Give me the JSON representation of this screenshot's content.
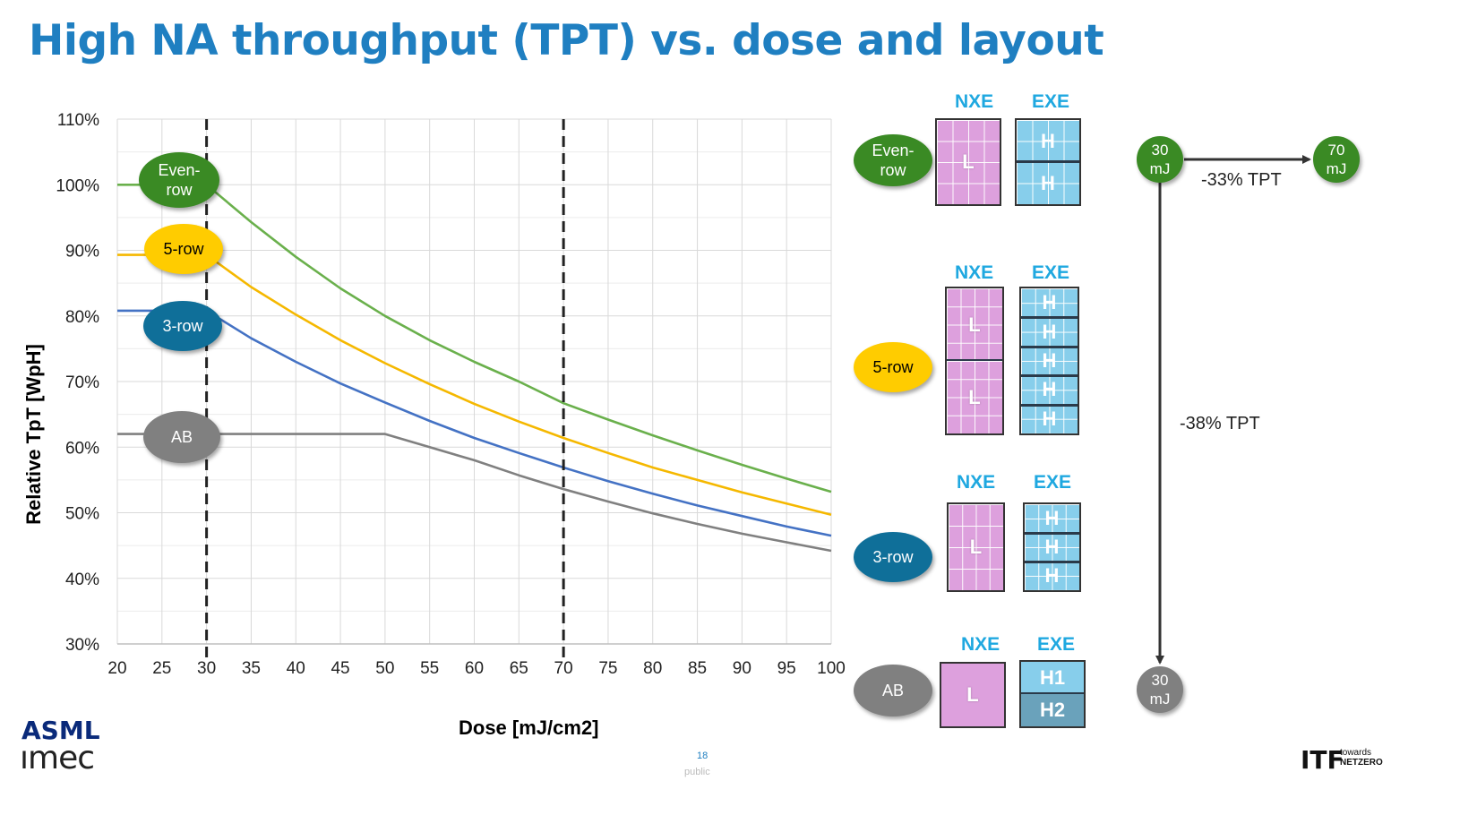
{
  "title": "High NA throughput (TPT) vs. dose and layout",
  "chart_data": {
    "type": "line",
    "xlabel": "Dose [mJ/cm2]",
    "ylabel": "Relative TpT [WpH]",
    "xlim": [
      20,
      100
    ],
    "ylim": [
      30,
      110
    ],
    "xticks": [
      20,
      25,
      30,
      35,
      40,
      45,
      50,
      55,
      60,
      65,
      70,
      75,
      80,
      85,
      90,
      95,
      100
    ],
    "yticks": [
      30,
      40,
      50,
      60,
      70,
      80,
      90,
      100,
      110
    ],
    "ytick_suffix": "%",
    "grid": true,
    "vlines": [
      30,
      70
    ],
    "series": [
      {
        "name": "Even-row",
        "color": "#6ab04c",
        "x": [
          20,
          25,
          30,
          35,
          40,
          45,
          50,
          55,
          60,
          65,
          70,
          75,
          80,
          85,
          90,
          95,
          100
        ],
        "y": [
          100,
          100,
          100,
          94.3,
          89,
          84.2,
          80,
          76.3,
          73,
          70,
          66.7,
          64.2,
          61.8,
          59.5,
          57.3,
          55.2,
          53.2
        ]
      },
      {
        "name": "5-row",
        "color": "#f5b800",
        "x": [
          20,
          25,
          30,
          35,
          40,
          45,
          50,
          55,
          60,
          65,
          70,
          75,
          80,
          85,
          90,
          95,
          100
        ],
        "y": [
          89.3,
          89.3,
          89.3,
          84.4,
          80.2,
          76.3,
          72.8,
          69.6,
          66.6,
          63.9,
          61.4,
          59.1,
          56.9,
          55,
          53.1,
          51.4,
          49.7
        ]
      },
      {
        "name": "3-row",
        "color": "#4472c4",
        "x": [
          20,
          25,
          30,
          35,
          40,
          45,
          50,
          55,
          60,
          65,
          70,
          75,
          80,
          85,
          90,
          95,
          100
        ],
        "y": [
          80.8,
          80.8,
          80.8,
          76.6,
          73,
          69.7,
          66.8,
          64,
          61.4,
          59.1,
          56.9,
          54.8,
          52.9,
          51.1,
          49.5,
          47.9,
          46.5
        ]
      },
      {
        "name": "AB",
        "color": "#808080",
        "x": [
          20,
          25,
          30,
          35,
          40,
          45,
          50,
          55,
          60,
          65,
          70,
          75,
          80,
          85,
          90,
          95,
          100
        ],
        "y": [
          62,
          62,
          62,
          62,
          62,
          62,
          62,
          60,
          58,
          55.7,
          53.6,
          51.7,
          49.9,
          48.3,
          46.8,
          45.5,
          44.2
        ]
      }
    ]
  },
  "chart_labels": {
    "even_row": "Even-\nrow",
    "five_row": "5-row",
    "three_row": "3-row",
    "ab": "AB"
  },
  "layouts": {
    "nxe_label": "NXE",
    "exe_label": "EXE",
    "even_row": {
      "name": "Even-\nrow",
      "nxe": "L",
      "exe": [
        "H",
        "H"
      ]
    },
    "five_row": {
      "name": "5-row",
      "nxe": [
        "L",
        "L"
      ],
      "exe": [
        "H",
        "H",
        "H",
        "H",
        "H"
      ]
    },
    "three_row": {
      "name": "3-row",
      "nxe": "L",
      "exe": [
        "H",
        "H",
        "H"
      ]
    },
    "ab": {
      "name": "AB",
      "nxe": "L",
      "exe": [
        "H1",
        "H2"
      ]
    }
  },
  "dose_flow": {
    "start": "30\nmJ",
    "end_right": "70\nmJ",
    "end_bottom": "30\nmJ",
    "right_label": "-33% TPT",
    "down_label": "-38% TPT",
    "colors": {
      "green": "#3a8a24",
      "gray": "#808080"
    }
  },
  "footer": {
    "logo_asml": "ASML",
    "logo_imec": "ımec",
    "page_number": "18",
    "classification": "public",
    "logo_itf": "ITF",
    "logo_itf_towards": "towards",
    "logo_itf_netzero": "NETZERO"
  }
}
